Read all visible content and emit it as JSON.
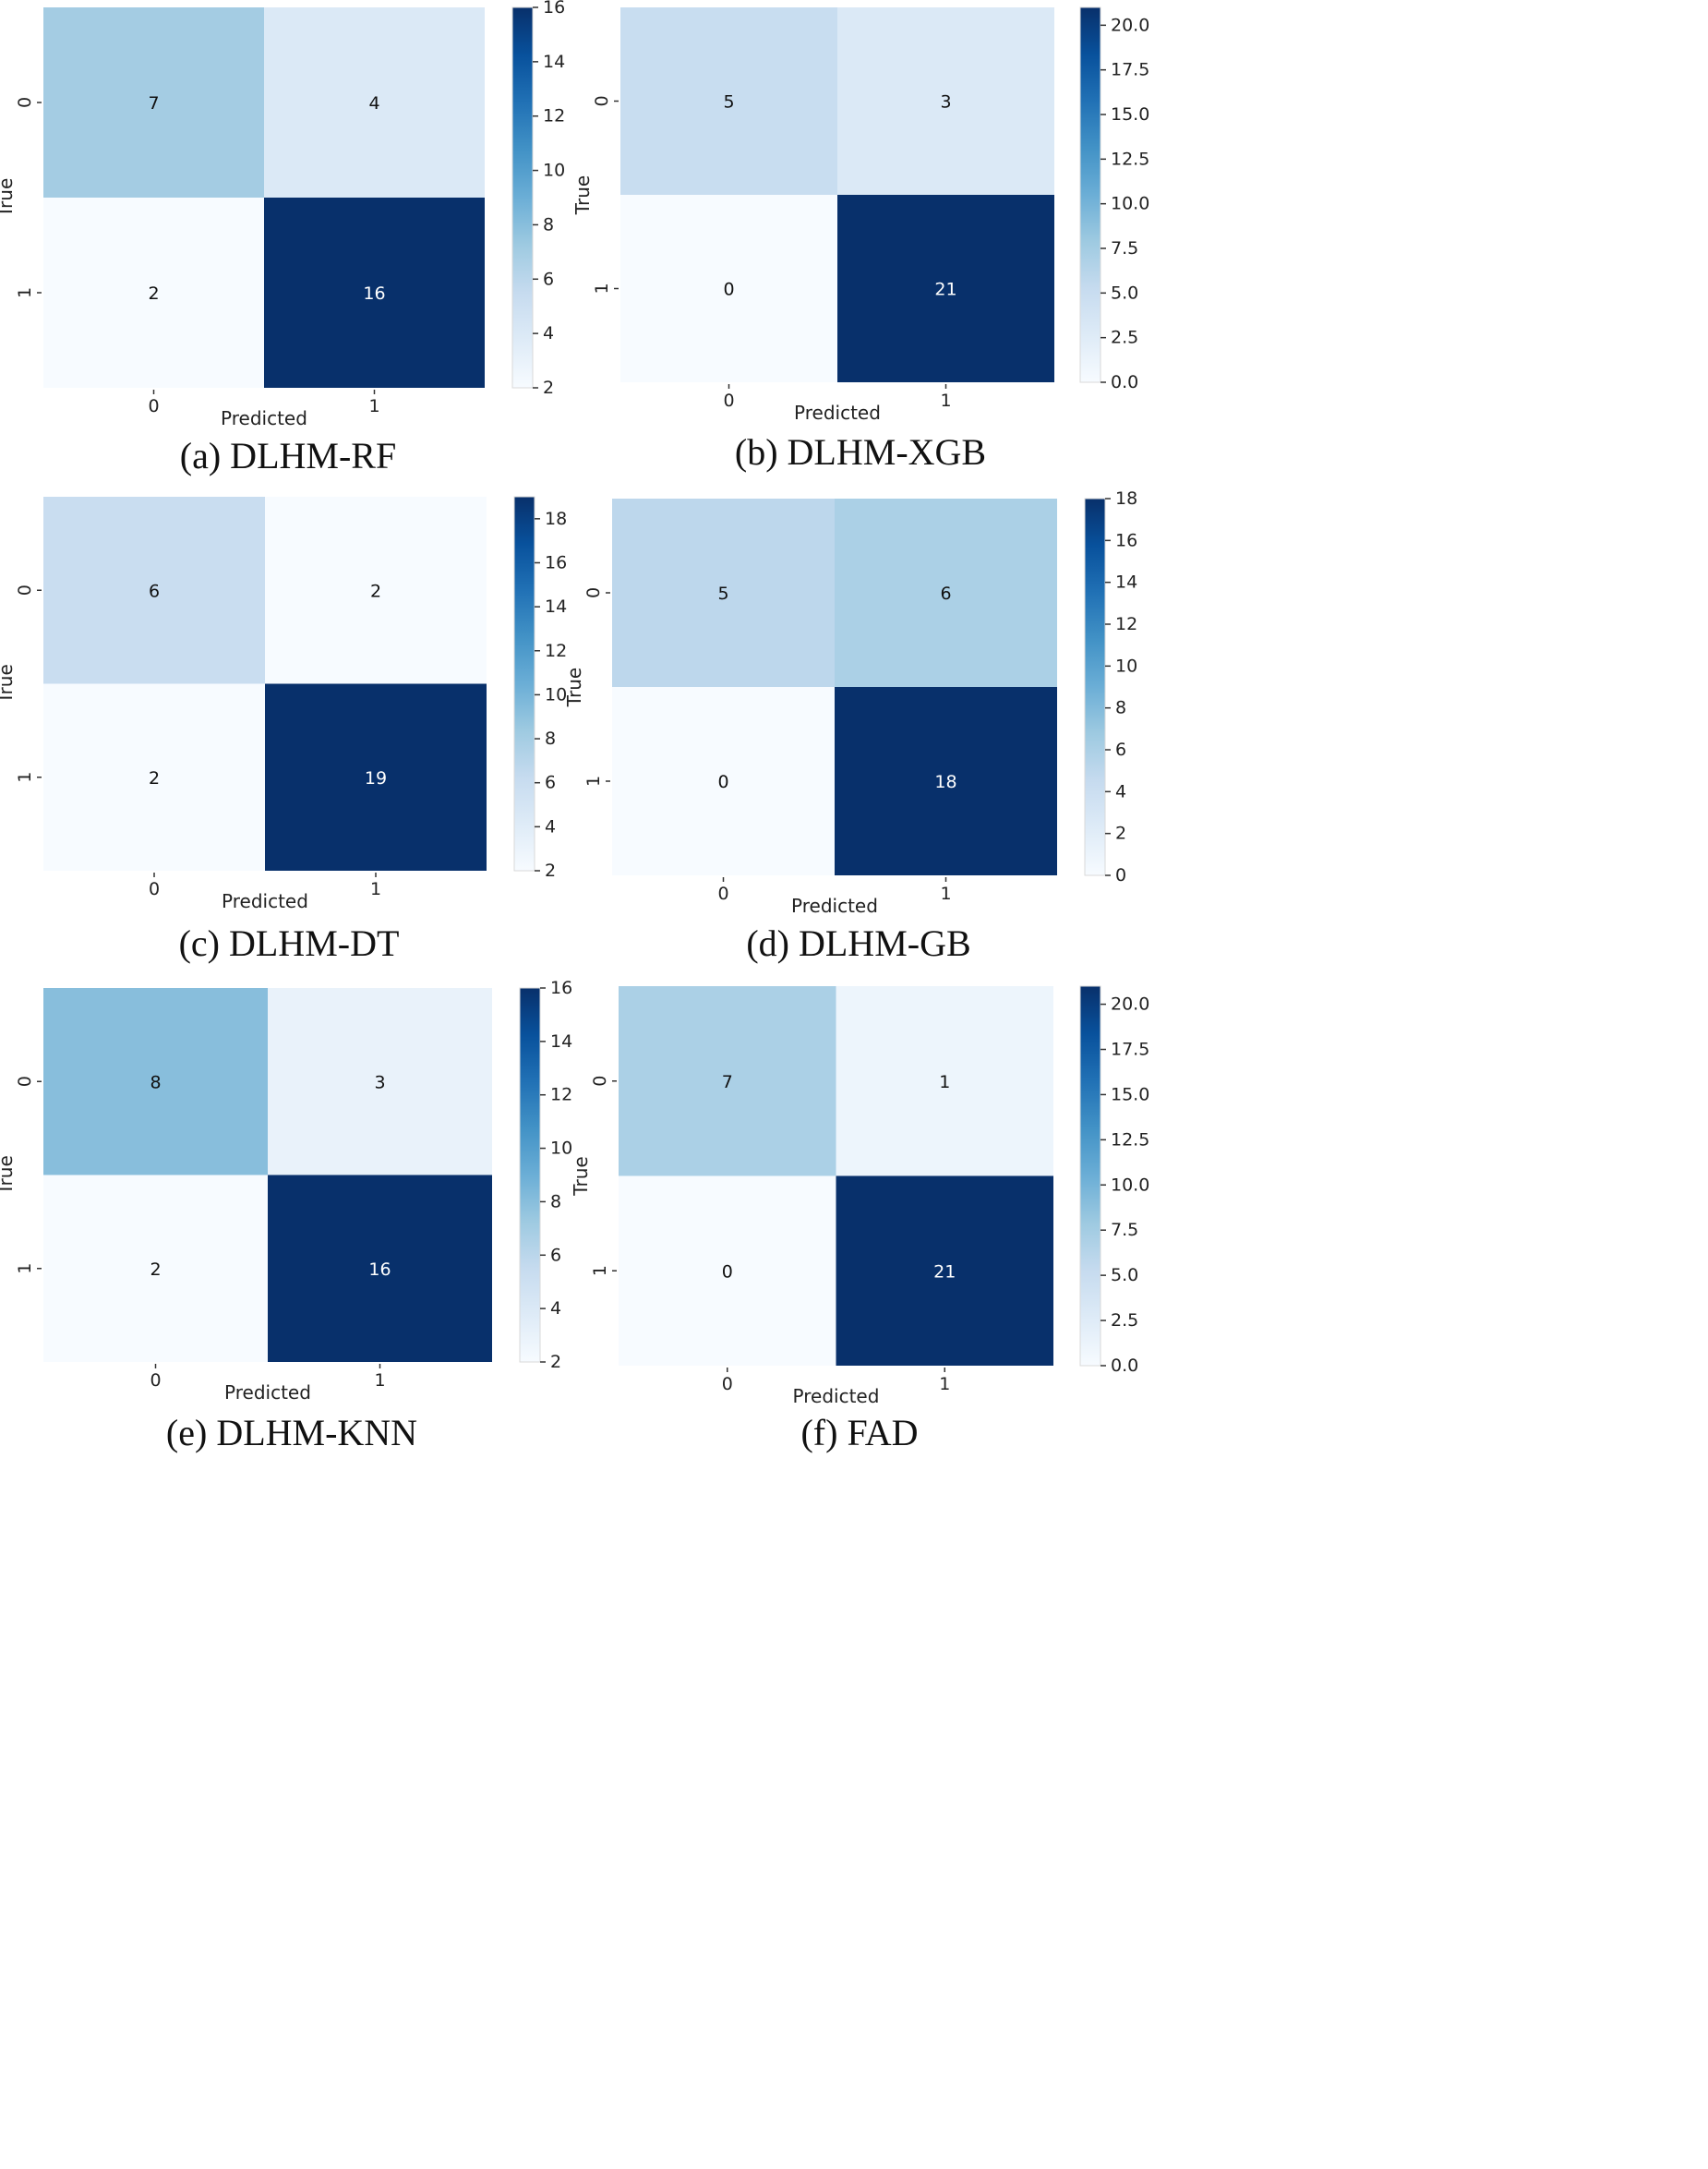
{
  "chart_data": [
    {
      "type": "heatmap",
      "caption": "(a) DLHM-RF",
      "xlabel": "Predicted",
      "ylabel": "True",
      "x_categories": [
        "0",
        "1"
      ],
      "y_categories": [
        "0",
        "1"
      ],
      "values": [
        [
          7,
          4
        ],
        [
          2,
          16
        ]
      ],
      "colorbar": {
        "min": 2,
        "max": 16,
        "ticks": [
          "2",
          "4",
          "6",
          "8",
          "10",
          "12",
          "14",
          "16"
        ]
      }
    },
    {
      "type": "heatmap",
      "caption": "(b) DLHM-XGB",
      "xlabel": "Predicted",
      "ylabel": "True",
      "x_categories": [
        "0",
        "1"
      ],
      "y_categories": [
        "0",
        "1"
      ],
      "values": [
        [
          5,
          3
        ],
        [
          0,
          21
        ]
      ],
      "colorbar": {
        "min": 0,
        "max": 21,
        "ticks": [
          "0.0",
          "2.5",
          "5.0",
          "7.5",
          "10.0",
          "12.5",
          "15.0",
          "17.5",
          "20.0"
        ]
      }
    },
    {
      "type": "heatmap",
      "caption": "(c) DLHM-DT",
      "xlabel": "Predicted",
      "ylabel": "True",
      "x_categories": [
        "0",
        "1"
      ],
      "y_categories": [
        "0",
        "1"
      ],
      "values": [
        [
          6,
          2
        ],
        [
          2,
          19
        ]
      ],
      "colorbar": {
        "min": 2,
        "max": 19,
        "ticks": [
          "2",
          "4",
          "6",
          "8",
          "10",
          "12",
          "14",
          "16",
          "18"
        ]
      }
    },
    {
      "type": "heatmap",
      "caption": "(d) DLHM-GB",
      "xlabel": "Predicted",
      "ylabel": "True",
      "x_categories": [
        "0",
        "1"
      ],
      "y_categories": [
        "0",
        "1"
      ],
      "values": [
        [
          5,
          6
        ],
        [
          0,
          18
        ]
      ],
      "colorbar": {
        "min": 0,
        "max": 18,
        "ticks": [
          "0",
          "2",
          "4",
          "6",
          "8",
          "10",
          "12",
          "14",
          "16",
          "18"
        ]
      }
    },
    {
      "type": "heatmap",
      "caption": "(e) DLHM-KNN",
      "xlabel": "Predicted",
      "ylabel": "True",
      "x_categories": [
        "0",
        "1"
      ],
      "y_categories": [
        "0",
        "1"
      ],
      "values": [
        [
          8,
          3
        ],
        [
          2,
          16
        ]
      ],
      "colorbar": {
        "min": 2,
        "max": 16,
        "ticks": [
          "2",
          "4",
          "6",
          "8",
          "10",
          "12",
          "14",
          "16"
        ]
      }
    },
    {
      "type": "heatmap",
      "caption": "(f) FAD",
      "xlabel": "Predicted",
      "ylabel": "True",
      "x_categories": [
        "0",
        "1"
      ],
      "y_categories": [
        "0",
        "1"
      ],
      "values": [
        [
          7,
          1
        ],
        [
          0,
          21
        ]
      ],
      "colorbar": {
        "min": 0,
        "max": 21,
        "ticks": [
          "0.0",
          "2.5",
          "5.0",
          "7.5",
          "10.0",
          "12.5",
          "15.0",
          "17.5",
          "20.0"
        ]
      }
    }
  ],
  "colormap": [
    "#f7fbff",
    "#deebf7",
    "#c6dbef",
    "#9ecae1",
    "#6baed6",
    "#4292c6",
    "#2171b5",
    "#08519c",
    "#08306b"
  ]
}
